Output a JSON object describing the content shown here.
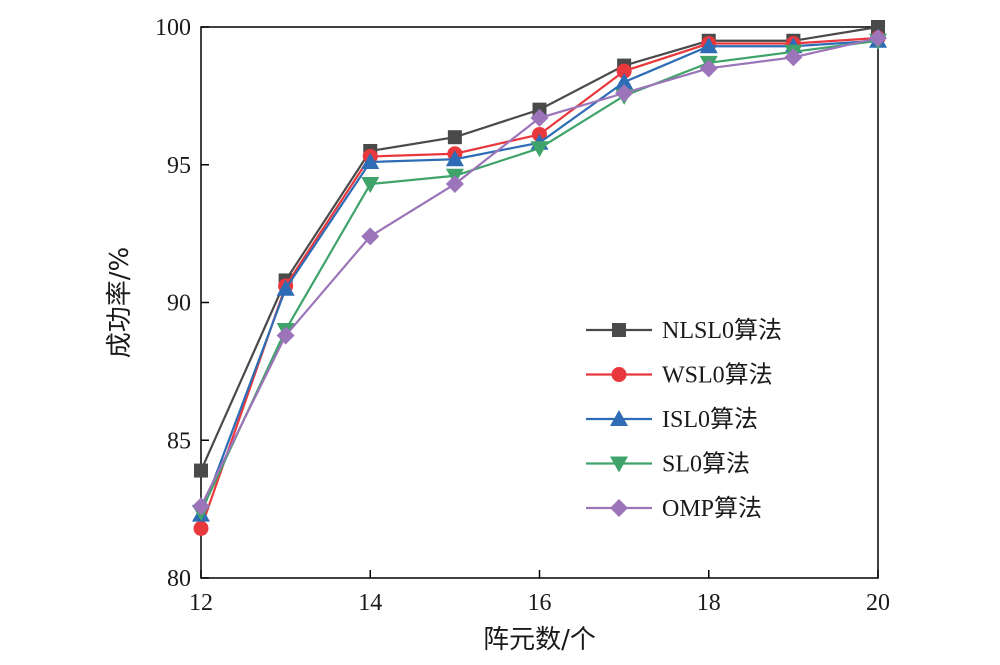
{
  "chart_data": {
    "type": "line",
    "title": "",
    "xlabel": "阵元数/个",
    "ylabel": "成功率/%",
    "xlim": [
      12,
      20
    ],
    "ylim": [
      80,
      100
    ],
    "xticks": [
      12,
      14,
      16,
      18,
      20
    ],
    "yticks": [
      80,
      85,
      90,
      95,
      100
    ],
    "grid": false,
    "legend_position": "center-right",
    "x": [
      12,
      13,
      14,
      15,
      16,
      17,
      18,
      19,
      20
    ],
    "series": [
      {
        "name": "NLSL0算法",
        "marker": "square",
        "color": "#4a4a4a",
        "values": [
          83.9,
          90.8,
          95.5,
          96.0,
          97.0,
          98.6,
          99.5,
          99.5,
          100.0
        ]
      },
      {
        "name": "WSL0算法",
        "marker": "circle",
        "color": "#e8383d",
        "values": [
          81.8,
          90.6,
          95.3,
          95.4,
          96.1,
          98.4,
          99.4,
          99.4,
          99.6
        ]
      },
      {
        "name": "ISL0算法",
        "marker": "triangle-up",
        "color": "#2e6db5",
        "values": [
          82.3,
          90.5,
          95.1,
          95.2,
          95.8,
          98.0,
          99.3,
          99.3,
          99.5
        ]
      },
      {
        "name": "SL0算法",
        "marker": "triangle-down",
        "color": "#3fa36a",
        "values": [
          82.4,
          89.0,
          94.3,
          94.6,
          95.6,
          97.5,
          98.7,
          99.1,
          99.5
        ]
      },
      {
        "name": "OMP算法",
        "marker": "diamond",
        "color": "#9b74b9",
        "values": [
          82.6,
          88.8,
          92.4,
          94.3,
          96.7,
          97.6,
          98.5,
          98.9,
          99.6
        ]
      }
    ]
  }
}
